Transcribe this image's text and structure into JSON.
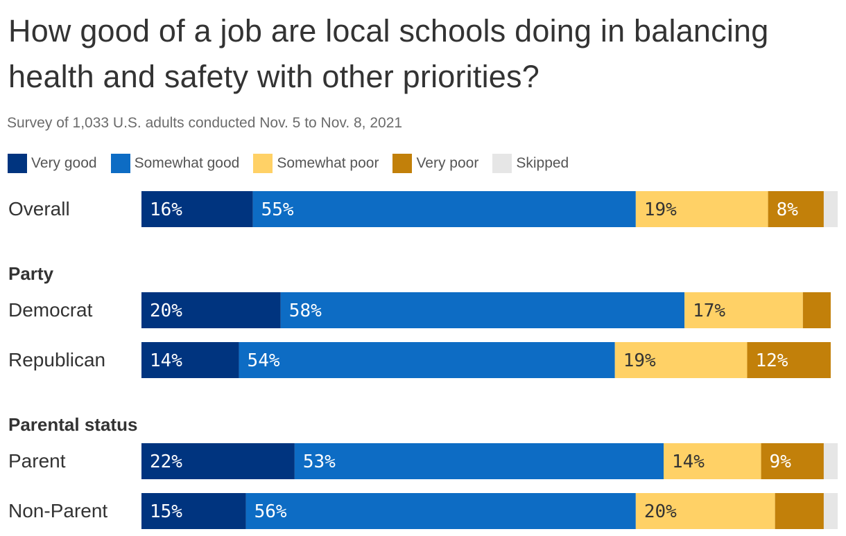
{
  "chart_data": {
    "type": "bar",
    "orientation": "horizontal",
    "stacked": true,
    "title": "How good of a job are local schools doing in balancing health and safety with other priorities?",
    "subtitle": "Survey of 1,033 U.S. adults conducted Nov. 5 to Nov. 8, 2021",
    "xlim": [
      0,
      100
    ],
    "legend_position": "top-left",
    "series": [
      {
        "name": "Very good",
        "color": "#00347f",
        "label_color": "#ffffff"
      },
      {
        "name": "Somewhat good",
        "color": "#0d6cc4",
        "label_color": "#ffffff"
      },
      {
        "name": "Somewhat poor",
        "color": "#ffd166",
        "label_color": "#333333"
      },
      {
        "name": "Very poor",
        "color": "#c2800a",
        "label_color": "#ffffff"
      },
      {
        "name": "Skipped",
        "color": "#e6e6e6",
        "label_color": "#333333"
      }
    ],
    "groups": [
      {
        "label": "",
        "rows": [
          {
            "category": "Overall",
            "values": [
              16,
              55,
              19,
              8,
              2
            ],
            "labels": [
              "16%",
              "55%",
              "19%",
              "8%",
              ""
            ]
          }
        ]
      },
      {
        "label": "Party",
        "rows": [
          {
            "category": "Democrat",
            "values": [
              20,
              58,
              17,
              4,
              0
            ],
            "labels": [
              "20%",
              "58%",
              "17%",
              "",
              ""
            ]
          },
          {
            "category": "Republican",
            "values": [
              14,
              54,
              19,
              12,
              0
            ],
            "labels": [
              "14%",
              "54%",
              "19%",
              "12%",
              ""
            ]
          }
        ]
      },
      {
        "label": "Parental status",
        "rows": [
          {
            "category": "Parent",
            "values": [
              22,
              53,
              14,
              9,
              2
            ],
            "labels": [
              "22%",
              "53%",
              "14%",
              "9%",
              ""
            ]
          },
          {
            "category": "Non-Parent",
            "values": [
              15,
              56,
              20,
              7,
              2
            ],
            "labels": [
              "15%",
              "56%",
              "20%",
              "",
              ""
            ]
          }
        ]
      }
    ]
  }
}
